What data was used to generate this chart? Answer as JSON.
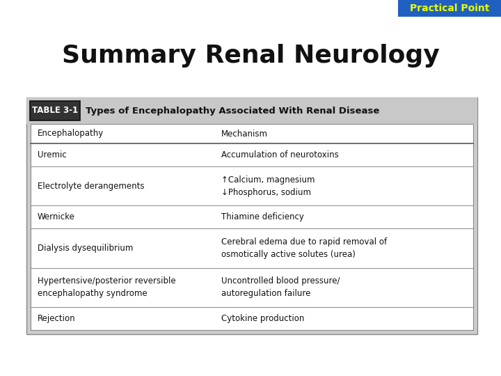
{
  "title": "Summary Renal Neurology",
  "title_fontsize": 26,
  "title_color": "#111111",
  "title_fontweight": "bold",
  "badge_text": "Practical Point",
  "badge_bg": "#2060c0",
  "badge_text_color": "#e8ff00",
  "badge_fontsize": 10,
  "table_label": "TABLE 3-1",
  "table_title": "  Types of Encephalopathy Associated With Renal Disease",
  "table_header_bg": "#c8c8c8",
  "table_outer_bg": "#cccccc",
  "table_inner_bg": "#ffffff",
  "col1_header": "Encephalopathy",
  "col2_header": "Mechanism",
  "rows": [
    [
      "Uremic",
      "Accumulation of neurotoxins"
    ],
    [
      "Electrolyte derangements",
      "↑Calcium, magnesium\n↓Phosphorus, sodium"
    ],
    [
      "Wernicke",
      "Thiamine deficiency"
    ],
    [
      "Dialysis dysequilibrium",
      "Cerebral edema due to rapid removal of\nosmotically active solutes (urea)"
    ],
    [
      "Hypertensive/posterior reversible\nencephalopathy syndrome",
      "Uncontrolled blood pressure/\nautoregulation failure"
    ],
    [
      "Rejection",
      "Cytokine production"
    ]
  ],
  "bg_color": "#ffffff",
  "cell_fontsize": 8.5,
  "header_fontsize": 8.5
}
